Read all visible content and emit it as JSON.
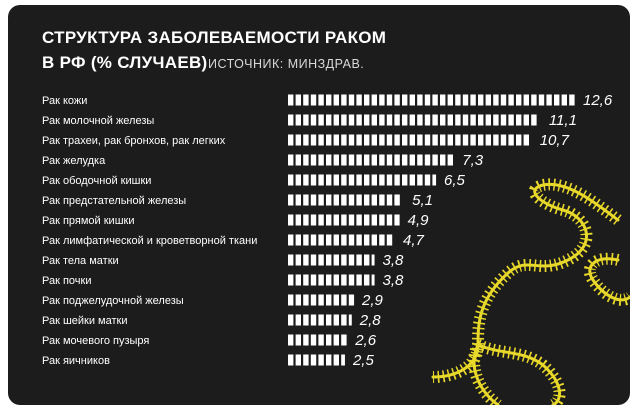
{
  "header": {
    "title_line1": "СТРУКТУРА ЗАБОЛЕВАЕМОСТИ РАКОМ",
    "title_line2": "В РФ (% СЛУЧАЕВ)",
    "source": "ИСТОЧНИК: МИНЗДРАВ."
  },
  "colors": {
    "background": "#1c1c1c",
    "bar": "#ffffff",
    "text": "#ffffff",
    "decor": "#e8d82a"
  },
  "chart_data": {
    "type": "bar",
    "orientation": "horizontal",
    "title": "СТРУКТУРА ЗАБОЛЕВАЕМОСТИ РАКОМ В РФ (% СЛУЧАЕВ)",
    "categories": [
      "Рак кожи",
      "Рак молочной железы",
      "Рак трахеи, рак бронхов, рак легких",
      "Рак желудка",
      "Рак ободочной кишки",
      "Рак предстательной железы",
      "Рак прямой кишки",
      "Рак лимфатической и кроветворной ткани",
      "Рак тела матки",
      "Рак почки",
      "Рак поджелудочной железы",
      "Рак шейки матки",
      "Рак мочевого пузыря",
      "Рак яичников"
    ],
    "values": [
      12.6,
      11.1,
      10.7,
      7.3,
      6.5,
      5.1,
      4.9,
      4.7,
      3.8,
      3.8,
      2.9,
      2.8,
      2.6,
      2.5
    ],
    "value_labels": [
      "12,6",
      "11,1",
      "10,7",
      "7,3",
      "6,5",
      "5,1",
      "4,9",
      "4,7",
      "3,8",
      "3,8",
      "2,9",
      "2,8",
      "2,6",
      "2,5"
    ],
    "xlim": [
      0,
      12.6
    ],
    "grid": false,
    "legend": "none"
  }
}
